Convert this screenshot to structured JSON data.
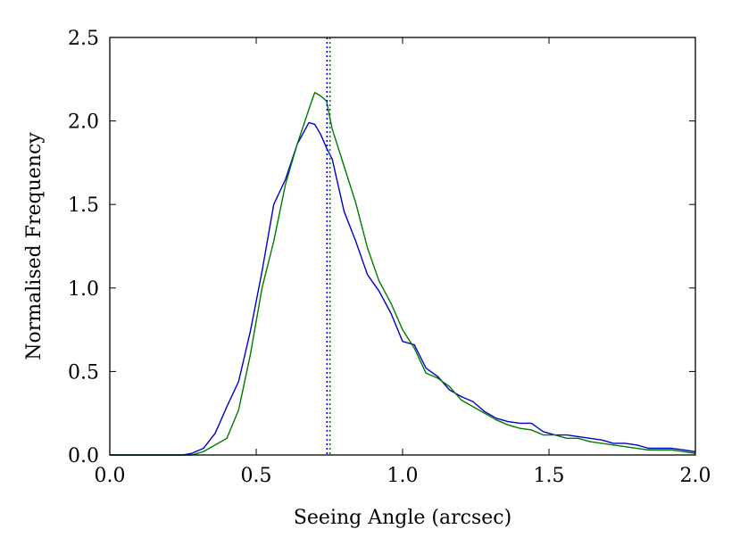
{
  "chart_data": {
    "type": "line",
    "title": "",
    "xlabel": "Seeing Angle (arcsec)",
    "ylabel": "Normalised Frequency",
    "xlim": [
      0.0,
      2.0
    ],
    "ylim": [
      0.0,
      2.5
    ],
    "xticks": [
      "0.0",
      "0.5",
      "1.0",
      "1.5",
      "2.0"
    ],
    "yticks": [
      "0.0",
      "0.5",
      "1.0",
      "1.5",
      "2.0",
      "2.5"
    ],
    "grid": false,
    "series": [
      {
        "color": "#0000cc",
        "style": "solid",
        "x": [
          0.0,
          0.1,
          0.2,
          0.25,
          0.28,
          0.32,
          0.36,
          0.4,
          0.44,
          0.48,
          0.52,
          0.56,
          0.6,
          0.64,
          0.68,
          0.7,
          0.72,
          0.74,
          0.76,
          0.8,
          0.84,
          0.88,
          0.92,
          0.96,
          1.0,
          1.04,
          1.08,
          1.12,
          1.16,
          1.2,
          1.24,
          1.28,
          1.32,
          1.36,
          1.4,
          1.44,
          1.48,
          1.52,
          1.56,
          1.6,
          1.64,
          1.68,
          1.72,
          1.76,
          1.8,
          1.84,
          1.88,
          1.92,
          1.96,
          2.0
        ],
        "y": [
          0.0,
          0.0,
          0.0,
          0.0,
          0.01,
          0.04,
          0.13,
          0.29,
          0.44,
          0.74,
          1.1,
          1.5,
          1.65,
          1.86,
          1.99,
          1.98,
          1.92,
          1.84,
          1.77,
          1.46,
          1.28,
          1.08,
          0.98,
          0.85,
          0.68,
          0.66,
          0.52,
          0.47,
          0.39,
          0.35,
          0.32,
          0.26,
          0.22,
          0.2,
          0.19,
          0.19,
          0.14,
          0.12,
          0.12,
          0.11,
          0.1,
          0.09,
          0.07,
          0.07,
          0.06,
          0.04,
          0.04,
          0.04,
          0.03,
          0.02
        ]
      },
      {
        "color": "#007a00",
        "style": "solid",
        "x": [
          0.0,
          0.1,
          0.2,
          0.25,
          0.28,
          0.32,
          0.36,
          0.4,
          0.44,
          0.48,
          0.52,
          0.56,
          0.6,
          0.64,
          0.68,
          0.7,
          0.72,
          0.74,
          0.76,
          0.8,
          0.84,
          0.88,
          0.92,
          0.96,
          1.0,
          1.04,
          1.08,
          1.12,
          1.16,
          1.2,
          1.24,
          1.28,
          1.32,
          1.36,
          1.4,
          1.44,
          1.48,
          1.52,
          1.56,
          1.6,
          1.64,
          1.68,
          1.72,
          1.76,
          1.8,
          1.84,
          1.88,
          1.92,
          1.96,
          2.0
        ],
        "y": [
          0.0,
          0.0,
          0.0,
          0.0,
          0.0,
          0.02,
          0.06,
          0.1,
          0.27,
          0.6,
          1.0,
          1.28,
          1.62,
          1.86,
          2.07,
          2.17,
          2.15,
          2.12,
          1.95,
          1.73,
          1.51,
          1.24,
          1.04,
          0.91,
          0.75,
          0.64,
          0.49,
          0.46,
          0.41,
          0.33,
          0.29,
          0.25,
          0.21,
          0.18,
          0.16,
          0.15,
          0.12,
          0.12,
          0.1,
          0.1,
          0.08,
          0.07,
          0.06,
          0.05,
          0.04,
          0.03,
          0.03,
          0.03,
          0.02,
          0.01
        ]
      }
    ],
    "vlines": [
      {
        "x": 0.742,
        "color": "#0000cc",
        "style": "dotted"
      },
      {
        "x": 0.752,
        "color": "#007a00",
        "style": "dotted"
      }
    ]
  }
}
